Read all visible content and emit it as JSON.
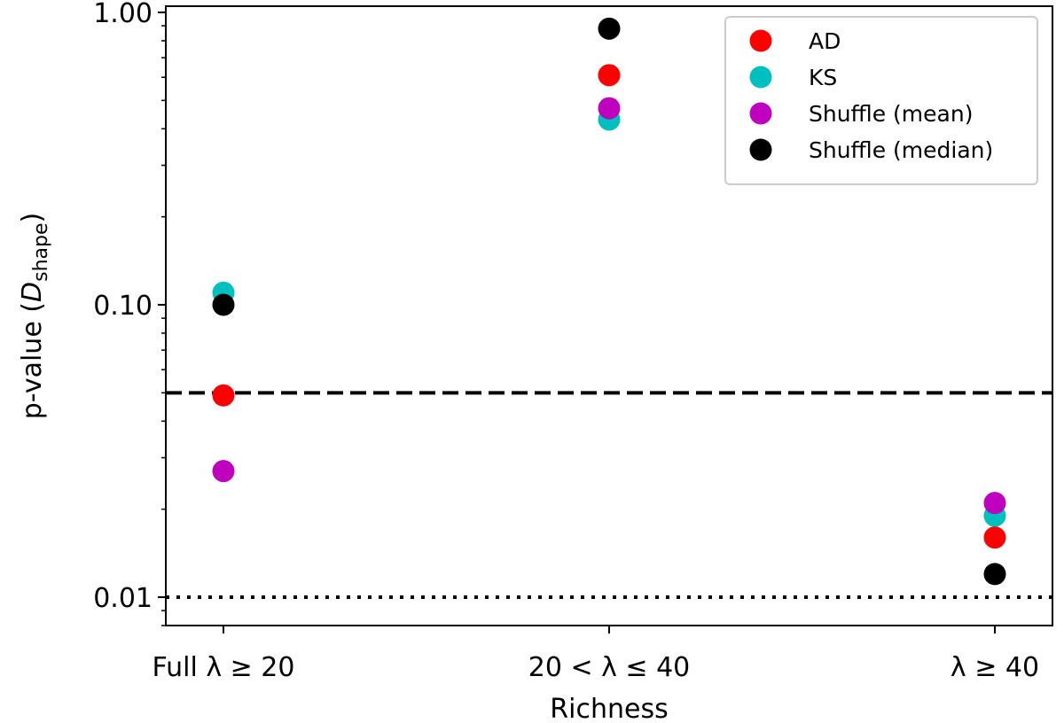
{
  "chart_data": {
    "type": "scatter",
    "xlabel": "Richness",
    "ylabel": {
      "prefix": "p-value (",
      "symbol": "D",
      "subscript": "shape",
      "suffix": ")"
    },
    "categories": [
      {
        "text": "Full ",
        "math": "λ ≥ 20"
      },
      {
        "text": "",
        "math": "20 < λ ≤ 40"
      },
      {
        "text": "",
        "math": "λ ≥ 40"
      }
    ],
    "y_scale": "log",
    "ylim": [
      0.008,
      1.05
    ],
    "yticks": [
      {
        "value": 0.01,
        "label": "0.01"
      },
      {
        "value": 0.1,
        "label": "0.10"
      },
      {
        "value": 1.0,
        "label": "1.00"
      }
    ],
    "reference_lines": [
      {
        "value": 0.05,
        "style": "dashed"
      },
      {
        "value": 0.01,
        "style": "dotted"
      }
    ],
    "series": [
      {
        "name": "AD",
        "color": "#ff0000",
        "values": [
          0.049,
          0.61,
          0.016
        ]
      },
      {
        "name": "KS",
        "color": "#00bfbf",
        "values": [
          0.11,
          0.43,
          0.019
        ]
      },
      {
        "name": "Shuffle (mean)",
        "color": "#bf00bf",
        "values": [
          0.027,
          0.47,
          0.021
        ]
      },
      {
        "name": "Shuffle (median)",
        "color": "#000000",
        "values": [
          0.1,
          0.88,
          0.012
        ]
      }
    ],
    "legend_position": "top-right",
    "grid": false
  }
}
